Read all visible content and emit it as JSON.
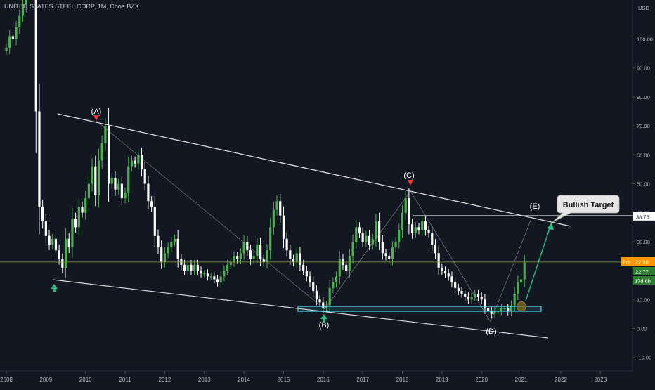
{
  "header": {
    "symbol_title": "UNITED STATES STEEL CORP, 1M, Cboe BZX"
  },
  "price_axis": {
    "currency": "USD",
    "ticks": [
      "100.00",
      "90.00",
      "80.00",
      "70.00",
      "60.00",
      "50.00",
      "40.00",
      "30.00",
      "10.00",
      "0.00",
      "-10.00"
    ]
  },
  "time_axis": {
    "ticks": [
      "2008",
      "2009",
      "2010",
      "2011",
      "2012",
      "2013",
      "2014",
      "2015",
      "2016",
      "2017",
      "2018",
      "2019",
      "2020",
      "2021",
      "2022",
      "2023"
    ]
  },
  "labels": {
    "pre_tag": "Pre",
    "pre_price": "22.98",
    "last_price": "22.77",
    "countdown": "17d 8h",
    "target_price": "38.76",
    "callout": "Bullish Target"
  },
  "wave_labels": [
    "(A)",
    "(B)",
    "(C)",
    "(D)",
    "(E)"
  ],
  "colors": {
    "background": "#131722",
    "up_candle": "#4caf50",
    "down_candle": "#ffffff",
    "trendline": "#d8d8d8",
    "support_zone": "#4dd0e1",
    "arrow_green": "#26c281",
    "arrow_red": "#ef3a3a",
    "pre_badge": "#ff9800",
    "price_badge": "#2e7d32",
    "reference_line": "#8a9a3a"
  },
  "chart_data": {
    "type": "candlestick",
    "title": "UNITED STATES STEEL CORP, 1M, Cboe BZX",
    "ylabel": "USD",
    "ylim": [
      -15,
      106
    ],
    "xlim": [
      2007.85,
      2024.5
    ],
    "grid": false,
    "pre_market_price": 22.98,
    "last_price": 22.77,
    "target_price": 38.76,
    "candles_sampled": [
      {
        "t": 2008.1,
        "close": 100
      },
      {
        "t": 2008.5,
        "close": 110
      },
      {
        "t": 2008.8,
        "close": 77
      },
      {
        "t": 2008.95,
        "close": 35
      },
      {
        "t": 2009.2,
        "close": 21
      },
      {
        "t": 2009.4,
        "close": 27
      },
      {
        "t": 2009.7,
        "close": 40
      },
      {
        "t": 2009.9,
        "close": 45
      },
      {
        "t": 2010.1,
        "close": 56
      },
      {
        "t": 2010.25,
        "close": 64
      },
      {
        "t": 2010.4,
        "close": 50
      },
      {
        "t": 2010.6,
        "close": 45
      },
      {
        "t": 2010.9,
        "close": 52
      },
      {
        "t": 2011.0,
        "close": 58
      },
      {
        "t": 2011.2,
        "close": 55
      },
      {
        "t": 2011.5,
        "close": 43
      },
      {
        "t": 2011.8,
        "close": 26
      },
      {
        "t": 2012.0,
        "close": 30
      },
      {
        "t": 2012.3,
        "close": 24
      },
      {
        "t": 2012.6,
        "close": 21
      },
      {
        "t": 2013.0,
        "close": 20
      },
      {
        "t": 2013.2,
        "close": 17
      },
      {
        "t": 2013.6,
        "close": 22
      },
      {
        "t": 2014.0,
        "close": 26
      },
      {
        "t": 2014.3,
        "close": 24
      },
      {
        "t": 2014.6,
        "close": 40
      },
      {
        "t": 2014.9,
        "close": 27
      },
      {
        "t": 2015.2,
        "close": 23
      },
      {
        "t": 2015.6,
        "close": 17
      },
      {
        "t": 2015.9,
        "close": 8
      },
      {
        "t": 2016.1,
        "close": 7
      },
      {
        "t": 2016.4,
        "close": 18
      },
      {
        "t": 2016.8,
        "close": 25
      },
      {
        "t": 2017.0,
        "close": 35
      },
      {
        "t": 2017.3,
        "close": 23
      },
      {
        "t": 2017.6,
        "close": 27
      },
      {
        "t": 2017.9,
        "close": 34
      },
      {
        "t": 2018.1,
        "close": 45
      },
      {
        "t": 2018.4,
        "close": 35
      },
      {
        "t": 2018.8,
        "close": 26
      },
      {
        "t": 2019.1,
        "close": 19
      },
      {
        "t": 2019.5,
        "close": 13
      },
      {
        "t": 2019.9,
        "close": 11
      },
      {
        "t": 2020.2,
        "close": 5
      },
      {
        "t": 2020.5,
        "close": 6
      },
      {
        "t": 2020.8,
        "close": 8
      },
      {
        "t": 2020.95,
        "close": 16
      },
      {
        "t": 2021.05,
        "close": 22.77
      }
    ]
  }
}
